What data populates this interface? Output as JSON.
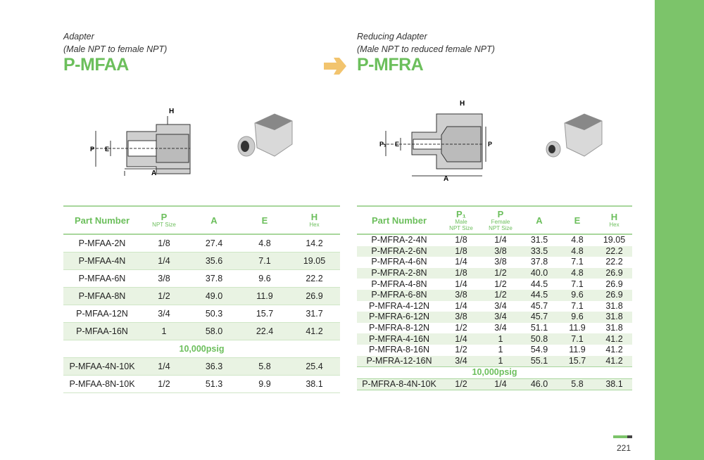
{
  "left": {
    "subtitle1": "Adapter",
    "subtitle2": "(Male NPT to female NPT)",
    "title": "P-MFAA",
    "headers": {
      "part": "Part Number",
      "p": "P",
      "p_sub": "NPT Size",
      "a": "A",
      "e": "E",
      "h": "H",
      "h_sub": "Hex"
    },
    "rows": [
      [
        "P-MFAA-2N",
        "1/8",
        "27.4",
        "4.8",
        "14.2"
      ],
      [
        "P-MFAA-4N",
        "1/4",
        "35.6",
        "7.1",
        "19.05"
      ],
      [
        "P-MFAA-6N",
        "3/8",
        "37.8",
        "9.6",
        "22.2"
      ],
      [
        "P-MFAA-8N",
        "1/2",
        "49.0",
        "11.9",
        "26.9"
      ],
      [
        "P-MFAA-12N",
        "3/4",
        "50.3",
        "15.7",
        "31.7"
      ],
      [
        "P-MFAA-16N",
        "1",
        "58.0",
        "22.4",
        "41.2"
      ]
    ],
    "pressure": "10,000psig",
    "rows_hp": [
      [
        "P-MFAA-4N-10K",
        "1/4",
        "36.3",
        "5.8",
        "25.4"
      ],
      [
        "P-MFAA-8N-10K",
        "1/2",
        "51.3",
        "9.9",
        "38.1"
      ]
    ],
    "diagram_labels": {
      "p": "P",
      "e": "E",
      "a": "A",
      "h": "H"
    }
  },
  "right": {
    "subtitle1": "Reducing Adapter",
    "subtitle2": "(Male NPT to reduced female NPT)",
    "title": "P-MFRA",
    "headers": {
      "part": "Part Number",
      "p1": "P₁",
      "p1_sub1": "Male",
      "p1_sub2": "NPT Size",
      "p": "P",
      "p_sub1": "Female",
      "p_sub2": "NPT Size",
      "a": "A",
      "e": "E",
      "h": "H",
      "h_sub": "Hex"
    },
    "rows": [
      [
        "P-MFRA-2-4N",
        "1/8",
        "1/4",
        "31.5",
        "4.8",
        "19.05"
      ],
      [
        "P-MFRA-2-6N",
        "1/8",
        "3/8",
        "33.5",
        "4.8",
        "22.2"
      ],
      [
        "P-MFRA-4-6N",
        "1/4",
        "3/8",
        "37.8",
        "7.1",
        "22.2"
      ],
      [
        "P-MFRA-2-8N",
        "1/8",
        "1/2",
        "40.0",
        "4.8",
        "26.9"
      ],
      [
        "P-MFRA-4-8N",
        "1/4",
        "1/2",
        "44.5",
        "7.1",
        "26.9"
      ],
      [
        "P-MFRA-6-8N",
        "3/8",
        "1/2",
        "44.5",
        "9.6",
        "26.9"
      ],
      [
        "P-MFRA-4-12N",
        "1/4",
        "3/4",
        "45.7",
        "7.1",
        "31.8"
      ],
      [
        "P-MFRA-6-12N",
        "3/8",
        "3/4",
        "45.7",
        "9.6",
        "31.8"
      ],
      [
        "P-MFRA-8-12N",
        "1/2",
        "3/4",
        "51.1",
        "11.9",
        "31.8"
      ],
      [
        "P-MFRA-4-16N",
        "1/4",
        "1",
        "50.8",
        "7.1",
        "41.2"
      ],
      [
        "P-MFRA-8-16N",
        "1/2",
        "1",
        "54.9",
        "11.9",
        "41.2"
      ],
      [
        "P-MFRA-12-16N",
        "3/4",
        "1",
        "55.1",
        "15.7",
        "41.2"
      ]
    ],
    "pressure": "10,000psig",
    "rows_hp": [
      [
        "P-MFRA-8-4N-10K",
        "1/2",
        "1/4",
        "46.0",
        "5.8",
        "38.1"
      ]
    ],
    "diagram_labels": {
      "p1": "P₁",
      "p": "P",
      "e": "E",
      "a": "A",
      "h": "H"
    }
  },
  "page_number": "221",
  "colors": {
    "accent": "#6cbf5c",
    "sidebar": "#7cc46a",
    "arrow": "#f2c46e"
  }
}
